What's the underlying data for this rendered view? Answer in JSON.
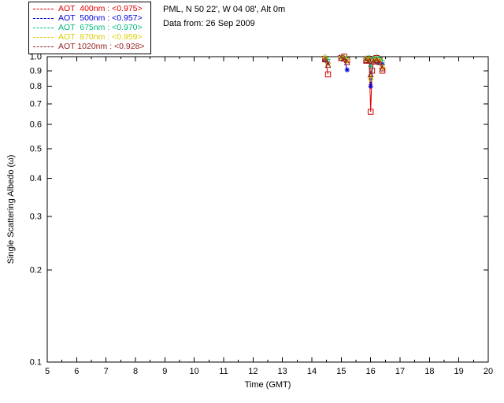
{
  "header": {
    "line1": "PML, N 50 22', W 04 08', Alt 0m",
    "line2": "Data from: 26 Sep 2009"
  },
  "legend": {
    "entries": [
      {
        "label": "AOT  400nm : <0.975>",
        "color": "#dd0000"
      },
      {
        "label": "AOT  500nm : <0.957>",
        "color": "#0000dd"
      },
      {
        "label": "AOT  675nm : <0.970>",
        "color": "#00bb77"
      },
      {
        "label": "AOT  870nm : <0.959>",
        "color": "#ddcc00"
      },
      {
        "label": "AOT 1020nm : <0.928>",
        "color": "#992222"
      }
    ]
  },
  "chart_data": {
    "type": "line",
    "title": "",
    "xlabel": "Time (GMT)",
    "ylabel": "Single Scattering Albedo (ω)",
    "xlim": [
      5,
      20
    ],
    "ylim": [
      0.1,
      1.0
    ],
    "yscale": "log",
    "xticks": [
      5,
      6,
      7,
      8,
      9,
      10,
      11,
      12,
      13,
      14,
      15,
      16,
      17,
      18,
      19,
      20
    ],
    "yticks": [
      0.1,
      0.2,
      0.3,
      0.4,
      0.5,
      0.6,
      0.7,
      0.8,
      0.9,
      1.0
    ],
    "grid": false,
    "legend_position": "top-left",
    "series": [
      {
        "name": "AOT 400nm",
        "mean": "<0.975>",
        "color": "#dd0000",
        "marker": "square",
        "segments": [
          [
            [
              14.45,
              0.985
            ],
            [
              14.55,
              0.875
            ]
          ],
          [
            [
              15.0,
              0.99
            ],
            [
              15.1,
              1.0
            ],
            [
              15.2,
              0.975
            ]
          ],
          [
            [
              15.85,
              0.97
            ],
            [
              15.95,
              0.985
            ],
            [
              16.0,
              0.66
            ],
            [
              16.05,
              0.9
            ],
            [
              16.1,
              0.965
            ],
            [
              16.2,
              0.99
            ],
            [
              16.3,
              0.975
            ],
            [
              16.4,
              0.9
            ]
          ]
        ]
      },
      {
        "name": "AOT 500nm",
        "mean": "<0.957>",
        "color": "#0000dd",
        "marker": "asterisk",
        "segments": [
          [
            [
              14.45,
              0.975
            ],
            [
              14.55,
              0.955
            ]
          ],
          [
            [
              15.0,
              1.0
            ],
            [
              15.1,
              0.99
            ],
            [
              15.2,
              0.905
            ]
          ],
          [
            [
              15.85,
              0.98
            ],
            [
              15.95,
              0.975
            ],
            [
              16.0,
              0.8
            ],
            [
              16.1,
              0.975
            ],
            [
              16.2,
              0.965
            ],
            [
              16.3,
              0.955
            ],
            [
              16.4,
              0.945
            ]
          ]
        ]
      },
      {
        "name": "AOT 675nm",
        "mean": "<0.970>",
        "color": "#00bb77",
        "marker": "plus",
        "segments": [
          [
            [
              14.45,
              1.0
            ],
            [
              14.55,
              0.98
            ]
          ],
          [
            [
              15.0,
              1.0
            ],
            [
              15.1,
              1.0
            ],
            [
              15.2,
              0.99
            ]
          ],
          [
            [
              15.85,
              0.99
            ],
            [
              15.95,
              0.995
            ],
            [
              16.0,
              0.93
            ],
            [
              16.1,
              0.99
            ],
            [
              16.2,
              1.0
            ],
            [
              16.3,
              0.99
            ],
            [
              16.4,
              0.97
            ]
          ]
        ]
      },
      {
        "name": "AOT 870nm",
        "mean": "<0.959>",
        "color": "#ddcc00",
        "marker": "diamond",
        "segments": [
          [
            [
              14.45,
              0.99
            ],
            [
              14.55,
              0.95
            ]
          ],
          [
            [
              15.0,
              0.995
            ],
            [
              15.1,
              0.99
            ],
            [
              15.2,
              0.97
            ]
          ],
          [
            [
              15.85,
              0.98
            ],
            [
              15.95,
              0.98
            ],
            [
              16.0,
              0.845
            ],
            [
              16.1,
              0.97
            ],
            [
              16.2,
              0.98
            ],
            [
              16.3,
              0.97
            ],
            [
              16.4,
              0.925
            ]
          ]
        ]
      },
      {
        "name": "AOT 1020nm",
        "mean": "<0.928>",
        "color": "#992222",
        "marker": "triangle",
        "segments": [
          [
            [
              14.45,
              0.98
            ],
            [
              14.55,
              0.94
            ]
          ],
          [
            [
              15.0,
              0.99
            ],
            [
              15.1,
              0.985
            ],
            [
              15.2,
              0.96
            ]
          ],
          [
            [
              15.85,
              0.975
            ],
            [
              15.95,
              0.97
            ],
            [
              16.0,
              0.875
            ],
            [
              16.1,
              0.965
            ],
            [
              16.2,
              0.975
            ],
            [
              16.3,
              0.96
            ],
            [
              16.4,
              0.915
            ]
          ]
        ]
      }
    ]
  }
}
